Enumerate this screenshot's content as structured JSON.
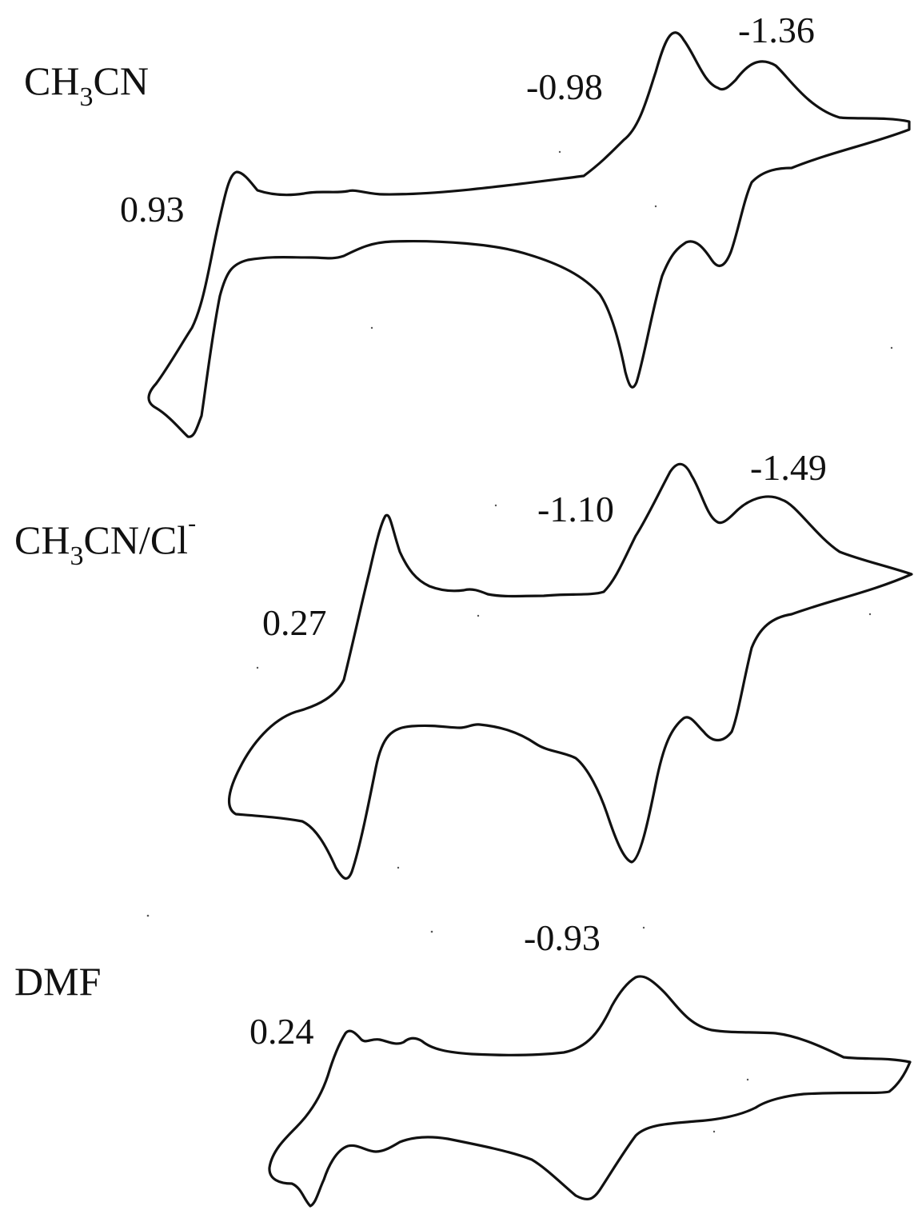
{
  "chart_data": [
    {
      "type": "line",
      "label": {
        "main": "CH",
        "sub": "3",
        "rest": "CN",
        "sup": ""
      },
      "peak_labels": [
        "0.93",
        "-0.98",
        "-1.36"
      ]
    },
    {
      "type": "line",
      "label": {
        "main": "CH",
        "sub": "3",
        "rest": "CN/Cl",
        "sup": "-"
      },
      "peak_labels": [
        "0.27",
        "-1.10",
        "-1.49"
      ]
    },
    {
      "type": "line",
      "label": {
        "main": "DMF",
        "sub": "",
        "rest": "",
        "sup": ""
      },
      "peak_labels": [
        "0.24",
        "-0.93"
      ]
    }
  ],
  "colors": {
    "ink": "#111111",
    "background": "#ffffff"
  }
}
